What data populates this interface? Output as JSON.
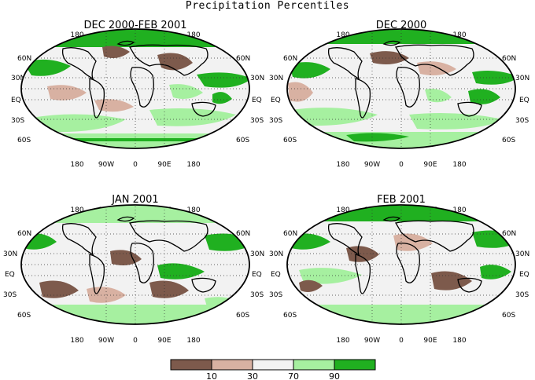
{
  "figure": {
    "title": "Precipitation Percentiles"
  },
  "panels": [
    {
      "title": "DEC 2000-FEB 2001",
      "lon_labels": [
        "180",
        "90W",
        "0",
        "90E",
        "180"
      ],
      "lat_labels_left": [
        "60N",
        "30N",
        "EQ",
        "30S",
        "60S"
      ],
      "lat_labels_right": [
        "60N",
        "30N",
        "EQ",
        "30S",
        "60S"
      ]
    },
    {
      "title": "DEC 2000",
      "lon_labels": [
        "180",
        "90W",
        "0",
        "90E",
        "180"
      ],
      "lat_labels_left": [
        "60N",
        "30N",
        "EQ",
        "30S",
        "60S"
      ],
      "lat_labels_right": [
        "60N",
        "30N",
        "EQ",
        "30S",
        "60S"
      ]
    },
    {
      "title": "JAN 2001",
      "lon_labels": [
        "180",
        "90W",
        "0",
        "90E",
        "180"
      ],
      "lat_labels_left": [
        "60N",
        "30N",
        "EQ",
        "30S",
        "60S"
      ],
      "lat_labels_right": [
        "60N",
        "30N",
        "EQ",
        "30S",
        "60S"
      ]
    },
    {
      "title": "FEB 2001",
      "lon_labels": [
        "180",
        "90W",
        "0",
        "90E",
        "180"
      ],
      "lat_labels_left": [
        "60N",
        "30N",
        "EQ",
        "30S",
        "60S"
      ],
      "lat_labels_right": [
        "60N",
        "30N",
        "EQ",
        "30S",
        "60S"
      ]
    }
  ],
  "colorbar": {
    "colors": [
      "#7d5a4c",
      "#d8b1a2",
      "#f2f2f2",
      "#a6f0a0",
      "#20b020"
    ],
    "labels": [
      "10",
      "30",
      "70",
      "90"
    ]
  }
}
